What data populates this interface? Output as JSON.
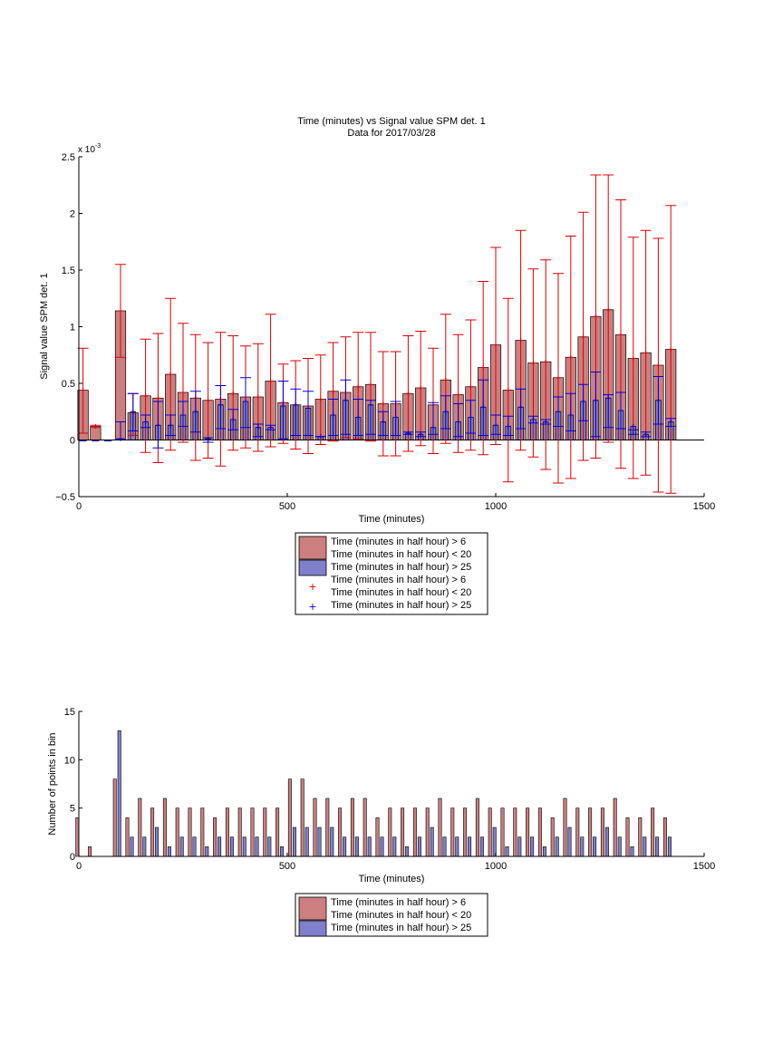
{
  "colors": {
    "bar_red": "#cd7f7f",
    "bar_blue": "#7f7fcd",
    "err_red": "#dd0000",
    "err_blue": "#0000dd",
    "axis": "#000000"
  },
  "chart_data": [
    {
      "type": "bar",
      "title": "Time (minutes) vs Signal value SPM det. 1",
      "subtitle": "Data for 2017/03/28",
      "xlabel": "Time (minutes)",
      "ylabel": "Signal value SPM det. 1",
      "exponent_label": "x 10",
      "exponent_power": "-3",
      "xlim": [
        0,
        1500
      ],
      "ylim": [
        -0.0005,
        0.0025
      ],
      "xticks": [
        0,
        500,
        1000,
        1500
      ],
      "xtick_labels": [
        "0",
        "500",
        "1000",
        "1500"
      ],
      "yticks": [
        -0.0005,
        0,
        0.0005,
        0.001,
        0.0015,
        0.002,
        0.0025
      ],
      "ytick_labels": [
        "−0.5",
        "0",
        "0.5",
        "1",
        "1.5",
        "2",
        "2.5"
      ],
      "bin_width": 25,
      "x": [
        10,
        40,
        70,
        100,
        130,
        160,
        190,
        220,
        250,
        280,
        310,
        340,
        370,
        400,
        430,
        460,
        490,
        520,
        550,
        580,
        610,
        640,
        670,
        700,
        730,
        760,
        790,
        820,
        850,
        880,
        910,
        940,
        970,
        1000,
        1030,
        1060,
        1090,
        1120,
        1150,
        1180,
        1210,
        1240,
        1270,
        1300,
        1330,
        1360,
        1390,
        1420
      ],
      "grid": false,
      "legend_position": "below",
      "series": [
        {
          "name": "Time (minutes in half hour) > 6 Time (minutes in half hour) < 20",
          "values": [
            0.00044,
            0.00012,
            null,
            0.00114,
            0.00024,
            0.00039,
            0.00037,
            0.00058,
            0.00042,
            0.00037,
            0.00035,
            0.00036,
            0.00041,
            0.00038,
            0.00038,
            0.00052,
            0.00033,
            0.00031,
            0.0003,
            0.00036,
            0.00043,
            0.00042,
            0.00047,
            0.00049,
            0.00032,
            0.00032,
            0.00041,
            0.00046,
            0.00031,
            0.00053,
            0.0004,
            0.00047,
            0.00064,
            0.00084,
            0.00044,
            0.00088,
            0.00068,
            0.00069,
            0.00055,
            0.00073,
            0.00091,
            0.00109,
            0.00115,
            0.00093,
            0.00072,
            0.00077,
            0.00066,
            0.0008
          ],
          "err_low": [
            6e-05,
            0.00011,
            null,
            0.00073,
            4e-05,
            -0.00011,
            -0.0002,
            -9e-05,
            -2e-05,
            -0.00018,
            -0.00016,
            -0.00023,
            -9e-05,
            -7e-05,
            -0.0001,
            -6e-05,
            -3e-05,
            -8e-05,
            -0.00012,
            -4e-05,
            -1e-05,
            2e-05,
            1e-05,
            -1e-05,
            -0.00014,
            -0.00014,
            -0.0001,
            -5e-05,
            -0.00012,
            -3e-05,
            -0.00011,
            -9e-05,
            -0.00013,
            -4e-05,
            -0.00037,
            -9e-05,
            -0.00015,
            -0.00026,
            -0.00038,
            -0.00034,
            -0.00018,
            -0.00016,
            -2e-05,
            -0.00025,
            -0.00034,
            -0.00031,
            -0.00046,
            -0.00047
          ],
          "err_high": [
            0.00081,
            0.00013,
            null,
            0.00155,
            0.00041,
            0.00089,
            0.00094,
            0.00125,
            0.00103,
            0.00093,
            0.00086,
            0.00095,
            0.00092,
            0.00083,
            0.00085,
            0.00111,
            0.00067,
            0.0007,
            0.00072,
            0.00075,
            0.00086,
            0.00091,
            0.00095,
            0.00095,
            0.00078,
            0.00078,
            0.00092,
            0.00096,
            0.00081,
            0.00111,
            0.00093,
            0.00106,
            0.0014,
            0.0017,
            0.00125,
            0.00185,
            0.00151,
            0.00159,
            0.00147,
            0.0018,
            0.00201,
            0.00234,
            0.00234,
            0.00212,
            0.00179,
            0.00185,
            0.00178,
            0.00207
          ]
        },
        {
          "name": "Time (minutes in half hour) > 25",
          "values": [
            null,
            null,
            null,
            1e-05,
            0.00025,
            0.00016,
            0.00013,
            0.00013,
            0.00022,
            0.00025,
            1e-05,
            0.00031,
            0.00018,
            0.00034,
            0.00011,
            0.00011,
            0.0003,
            0.00031,
            0.00028,
            3e-05,
            0.00022,
            0.00035,
            0.0002,
            0.00031,
            0.00016,
            0.0002,
            6e-05,
            5e-05,
            0.00011,
            0.00025,
            0.00016,
            0.0002,
            0.00029,
            0.00013,
            0.00012,
            0.00029,
            0.00018,
            0.00016,
            0.00025,
            0.00022,
            0.00034,
            0.00035,
            0.00037,
            0.00026,
            0.00012,
            5e-05,
            0.00035,
            0.00016
          ],
          "err_low": [
            null,
            null,
            null,
            1e-05,
            8e-05,
            0.00011,
            -7e-05,
            4e-05,
            0.00012,
            7e-05,
            -2e-05,
            0.0001,
            9e-05,
            0.00011,
            3e-05,
            9e-05,
            1e-05,
            4e-05,
            4e-05,
            3e-05,
            4e-05,
            5e-05,
            4e-05,
            5e-05,
            4e-05,
            4e-05,
            5e-05,
            3e-05,
            5e-05,
            0.0001,
            3e-05,
            6e-05,
            4e-05,
            5e-05,
            4e-05,
            0.0001,
            0.00015,
            0.00014,
            0.00012,
            8e-05,
            0.00017,
            3e-05,
            0.00011,
            0.0001,
            5e-05,
            3e-05,
            0.00014,
            0.00012
          ],
          "err_high": [
            null,
            null,
            null,
            0.00016,
            0.00041,
            0.00022,
            0.00034,
            0.00022,
            0.00034,
            0.00043,
            2e-05,
            0.00048,
            0.00027,
            0.00055,
            0.00014,
            0.00013,
            0.00052,
            0.00045,
            0.00043,
            3e-05,
            0.00036,
            0.00053,
            0.00036,
            0.00035,
            0.00025,
            0.00034,
            7e-05,
            7e-05,
            0.00033,
            0.00039,
            0.00032,
            0.00035,
            0.00053,
            0.00022,
            0.00021,
            0.00045,
            0.00021,
            0.00018,
            0.00038,
            0.00041,
            0.00049,
            0.0006,
            0.0004,
            0.00042,
            9e-05,
            7e-05,
            0.00056,
            0.00019
          ]
        }
      ]
    },
    {
      "type": "bar",
      "xlabel": "Time (minutes)",
      "ylabel": "Number of points in bin",
      "xlim": [
        0,
        1500
      ],
      "ylim": [
        0,
        15
      ],
      "xticks": [
        0,
        500,
        1000,
        1500
      ],
      "xtick_labels": [
        "0",
        "500",
        "1000",
        "1500"
      ],
      "yticks": [
        0,
        5,
        10,
        15
      ],
      "ytick_labels": [
        "0",
        "5",
        "10",
        "15"
      ],
      "x": [
        10,
        40,
        70,
        100,
        130,
        160,
        190,
        220,
        250,
        280,
        310,
        340,
        370,
        400,
        430,
        460,
        490,
        520,
        550,
        580,
        610,
        640,
        670,
        700,
        730,
        760,
        790,
        820,
        850,
        880,
        910,
        940,
        970,
        1000,
        1030,
        1060,
        1090,
        1120,
        1150,
        1180,
        1210,
        1240,
        1270,
        1300,
        1330,
        1360,
        1390,
        1420
      ],
      "grid": false,
      "legend_position": "below",
      "series": [
        {
          "name": "Time (minutes in half hour) > 6 Time (minutes in half hour) < 20",
          "values": [
            4,
            1,
            0,
            8,
            4,
            6,
            5,
            6,
            5,
            5,
            5,
            4,
            5,
            5,
            5,
            5,
            5,
            8,
            8,
            6,
            6,
            5,
            6,
            6,
            4,
            5,
            5,
            5,
            5,
            6,
            5,
            5,
            6,
            5,
            5,
            5,
            5,
            5,
            4,
            6,
            5,
            5,
            5,
            6,
            4,
            4,
            5,
            4
          ]
        },
        {
          "name": "Time (minutes in half hour) > 25",
          "values": [
            0,
            0,
            0,
            13,
            2,
            2,
            3,
            1,
            2,
            2,
            1,
            2,
            2,
            2,
            2,
            2,
            1,
            3,
            3,
            3,
            3,
            2,
            2,
            2,
            2,
            2,
            1,
            2,
            3,
            2,
            2,
            2,
            2,
            3,
            1,
            2,
            2,
            1,
            2,
            3,
            2,
            2,
            3,
            2,
            1,
            2,
            2,
            2
          ]
        }
      ]
    }
  ],
  "legend_top": {
    "entries": [
      "Time (minutes in half hour) > 6",
      "Time (minutes in half hour) < 20",
      "Time (minutes in half hour) > 25",
      "Time (minutes in half hour) > 6",
      "Time (minutes in half hour) < 20",
      "Time (minutes in half hour) > 25"
    ],
    "marker": "+"
  },
  "legend_bottom": {
    "entries": [
      "Time (minutes in half hour) > 6",
      "Time (minutes in half hour) < 20",
      "Time (minutes in half hour) > 25"
    ]
  }
}
